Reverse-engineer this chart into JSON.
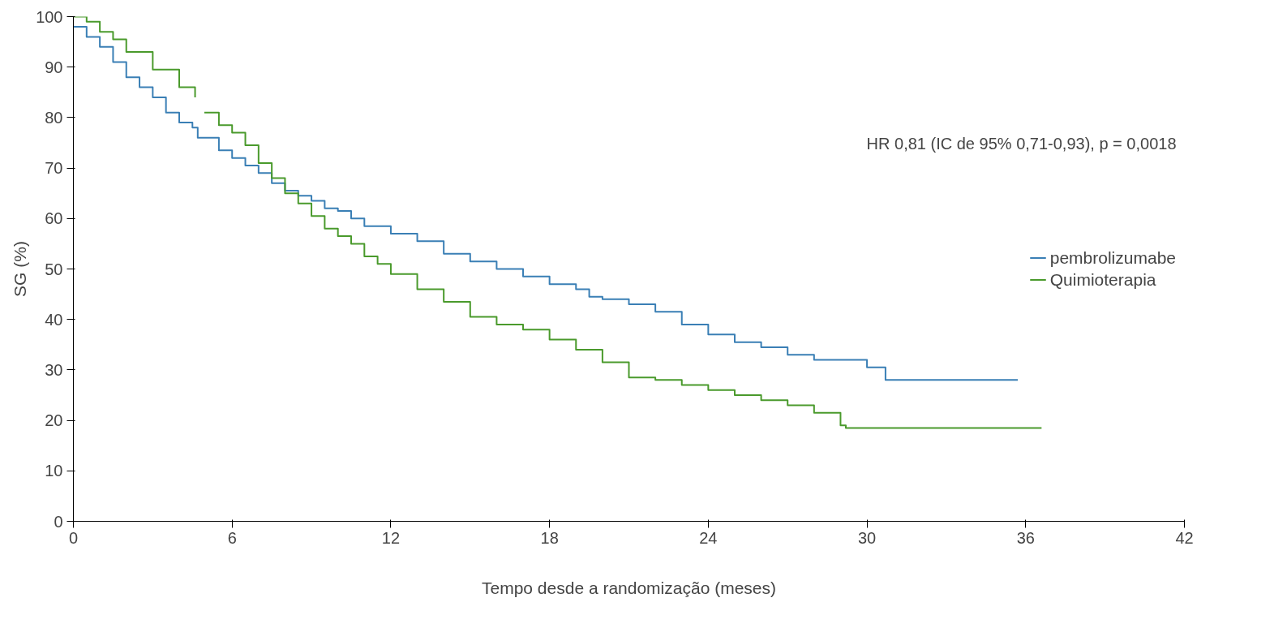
{
  "chart_data": {
    "type": "step",
    "xlabel": "Tempo desde a randomização (meses)",
    "ylabel": "SG (%)",
    "annotations": [
      "HR 0,81 (IC de 95% 0,71-0,93), p = 0,0018"
    ],
    "xlim": [
      0,
      42
    ],
    "ylim": [
      0,
      100
    ],
    "xticks": [
      0,
      6,
      12,
      18,
      24,
      30,
      36,
      42
    ],
    "yticks": [
      0,
      10,
      20,
      30,
      40,
      50,
      60,
      70,
      80,
      90,
      100
    ],
    "grid": false,
    "legend": "right",
    "line_style": "solid",
    "marker": "none",
    "series": [
      {
        "name": "pembrolizumabe",
        "color": "#3a7fb5",
        "x": [
          0,
          0.5,
          1,
          1.5,
          2,
          2.5,
          3,
          3.5,
          4,
          4.5,
          4.7,
          5.5,
          6,
          6.5,
          7,
          7.5,
          8,
          8.5,
          9,
          9.5,
          10,
          10.5,
          11,
          12,
          13,
          14,
          15,
          16,
          17,
          18,
          19,
          19.5,
          20,
          21,
          22,
          23,
          24,
          25,
          26,
          27,
          28,
          29,
          30,
          30.7,
          35.7
        ],
        "values": [
          98,
          96,
          94,
          91,
          88,
          86,
          84,
          81,
          79,
          78,
          76,
          73.5,
          72,
          70.5,
          69,
          67,
          65.5,
          64.5,
          63.5,
          62,
          61.5,
          60,
          58.5,
          57,
          55.5,
          53,
          51.5,
          50,
          48.5,
          47,
          46,
          44.5,
          44,
          43,
          41.5,
          39,
          37,
          35.5,
          34.5,
          33,
          32,
          32,
          30.5,
          28,
          28
        ]
      },
      {
        "name": "Quimioterapia",
        "color": "#4a9a2c",
        "x": [
          0,
          0.5,
          1,
          1.5,
          2,
          3,
          4,
          4.6,
          4.8,
          4.95,
          5.5,
          6,
          6.5,
          7,
          7.5,
          8,
          8.5,
          9,
          9.5,
          10,
          10.5,
          11,
          11.5,
          12,
          13,
          14,
          15,
          16,
          17,
          18,
          19,
          20,
          21,
          22,
          23,
          24,
          25,
          26,
          27,
          28,
          29,
          29.2,
          36.6
        ],
        "values": [
          100,
          99,
          97,
          95.5,
          93,
          89.5,
          86,
          84,
          null,
          81,
          78.5,
          77,
          74.5,
          71,
          68,
          65,
          63,
          60.5,
          58,
          56.5,
          55,
          52.5,
          51,
          49,
          46,
          43.5,
          40.5,
          39,
          38,
          36,
          34,
          31.5,
          28.5,
          28,
          27,
          26,
          25,
          24,
          23,
          21.5,
          19,
          18.5,
          18.5
        ]
      }
    ]
  }
}
